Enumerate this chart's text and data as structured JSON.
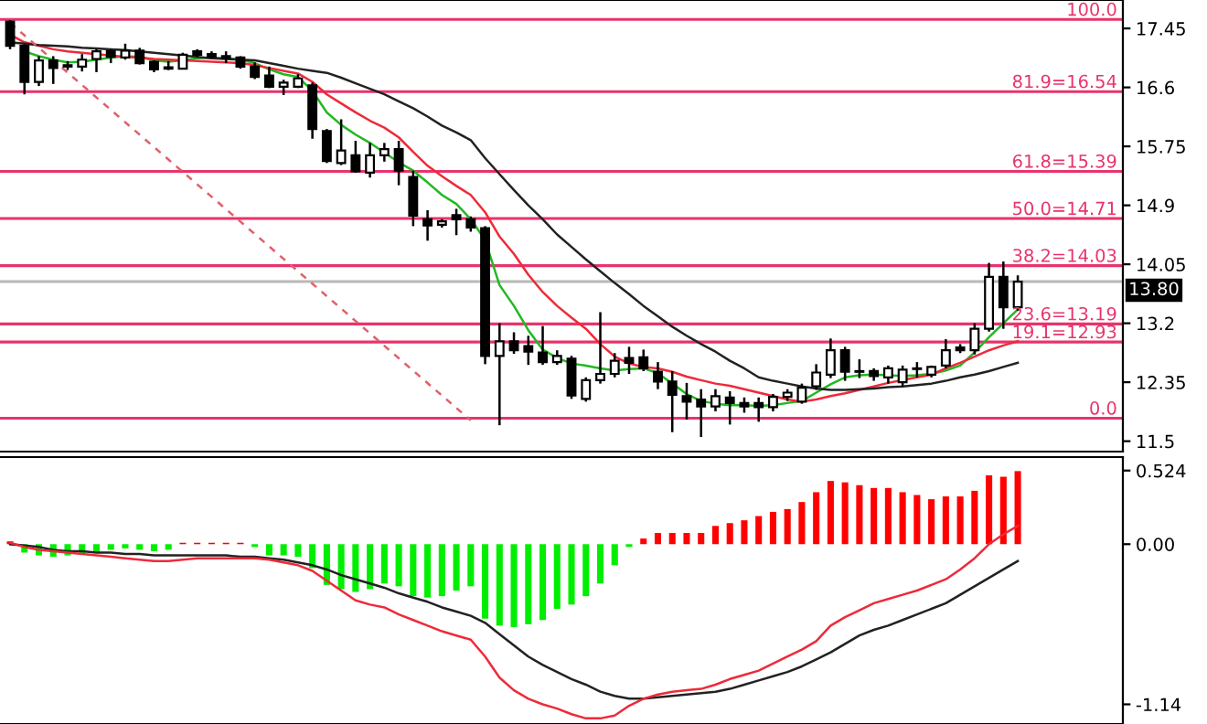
{
  "chart_data": [
    {
      "type": "candlestick",
      "categories": [
        null,
        null,
        null,
        null,
        null,
        null,
        null,
        null,
        null,
        null,
        null,
        null,
        null,
        null,
        null,
        null,
        null,
        null,
        null,
        null,
        null,
        null,
        null,
        null,
        null,
        null,
        null,
        null,
        null,
        null,
        null,
        null,
        null,
        null,
        null,
        null,
        null,
        null,
        null,
        null,
        null,
        null,
        null,
        null,
        null,
        null,
        null,
        null,
        null,
        null,
        null,
        null,
        null,
        null,
        null,
        null,
        null,
        null,
        null,
        null,
        null,
        null,
        null,
        null,
        null,
        null,
        null,
        null,
        null,
        null,
        null
      ],
      "ohlc": [
        [
          17.55,
          17.57,
          17.15,
          17.2
        ],
        [
          17.2,
          17.22,
          16.5,
          16.68
        ],
        [
          16.68,
          17.05,
          16.62,
          16.99
        ],
        [
          16.99,
          17.05,
          16.65,
          16.88
        ],
        [
          16.9,
          16.98,
          16.85,
          16.92
        ],
        [
          16.9,
          17.08,
          16.83,
          17.0
        ],
        [
          17.01,
          17.15,
          16.82,
          17.12
        ],
        [
          17.12,
          17.15,
          16.95,
          17.04
        ],
        [
          17.03,
          17.23,
          17.0,
          17.13
        ],
        [
          17.13,
          17.17,
          16.93,
          16.95
        ],
        [
          16.97,
          16.99,
          16.82,
          16.86
        ],
        [
          16.89,
          16.98,
          16.85,
          16.87
        ],
        [
          16.87,
          17.1,
          16.87,
          17.07
        ],
        [
          17.12,
          17.15,
          17.04,
          17.07
        ],
        [
          17.08,
          17.12,
          17.02,
          17.04
        ],
        [
          17.05,
          17.12,
          16.95,
          17.02
        ],
        [
          17.03,
          17.05,
          16.87,
          16.9
        ],
        [
          16.9,
          16.96,
          16.72,
          16.75
        ],
        [
          16.77,
          16.9,
          16.59,
          16.61
        ],
        [
          16.61,
          16.71,
          16.49,
          16.67
        ],
        [
          16.61,
          16.79,
          16.59,
          16.73
        ],
        [
          16.63,
          16.67,
          15.86,
          16.0
        ],
        [
          15.97,
          16.0,
          15.51,
          15.54
        ],
        [
          15.51,
          16.14,
          15.48,
          15.69
        ],
        [
          15.62,
          15.83,
          15.37,
          15.39
        ],
        [
          15.37,
          15.8,
          15.3,
          15.62
        ],
        [
          15.62,
          15.8,
          15.53,
          15.71
        ],
        [
          15.71,
          15.83,
          15.19,
          15.4
        ],
        [
          15.31,
          15.4,
          14.6,
          14.75
        ],
        [
          14.7,
          14.83,
          14.39,
          14.61
        ],
        [
          14.62,
          14.7,
          14.58,
          14.67
        ],
        [
          14.76,
          14.85,
          14.47,
          14.7
        ],
        [
          14.7,
          14.74,
          14.52,
          14.58
        ],
        [
          14.57,
          14.6,
          12.61,
          12.73
        ],
        [
          12.73,
          13.2,
          11.73,
          12.94
        ],
        [
          12.94,
          13.07,
          12.76,
          12.81
        ],
        [
          12.87,
          13.02,
          12.6,
          12.79
        ],
        [
          12.78,
          13.16,
          12.6,
          12.64
        ],
        [
          12.64,
          12.81,
          12.6,
          12.73
        ],
        [
          12.69,
          12.73,
          12.11,
          12.16
        ],
        [
          12.11,
          12.42,
          12.07,
          12.38
        ],
        [
          12.38,
          13.36,
          12.33,
          12.47
        ],
        [
          12.47,
          12.77,
          12.42,
          12.66
        ],
        [
          12.7,
          12.86,
          12.47,
          12.63
        ],
        [
          12.71,
          12.82,
          12.51,
          12.55
        ],
        [
          12.5,
          12.64,
          12.25,
          12.36
        ],
        [
          12.36,
          12.51,
          11.63,
          12.17
        ],
        [
          12.15,
          12.34,
          11.81,
          12.07
        ],
        [
          12.1,
          12.25,
          11.56,
          12.0
        ],
        [
          12.0,
          12.25,
          11.93,
          12.15
        ],
        [
          12.13,
          12.22,
          11.74,
          12.05
        ],
        [
          12.05,
          12.13,
          11.91,
          12.0
        ],
        [
          12.05,
          12.13,
          11.78,
          11.99
        ],
        [
          11.99,
          12.18,
          11.93,
          12.14
        ],
        [
          12.14,
          12.25,
          12.08,
          12.2
        ],
        [
          12.07,
          12.33,
          12.04,
          12.27
        ],
        [
          12.29,
          12.61,
          12.24,
          12.49
        ],
        [
          12.46,
          12.98,
          12.41,
          12.81
        ],
        [
          12.81,
          12.86,
          12.37,
          12.5
        ],
        [
          12.51,
          12.68,
          12.41,
          12.5
        ],
        [
          12.51,
          12.55,
          12.37,
          12.44
        ],
        [
          12.42,
          12.59,
          12.33,
          12.55
        ],
        [
          12.35,
          12.59,
          12.29,
          12.53
        ],
        [
          12.54,
          12.64,
          12.42,
          12.55
        ],
        [
          12.46,
          12.59,
          12.42,
          12.57
        ],
        [
          12.59,
          12.97,
          12.55,
          12.81
        ],
        [
          12.85,
          12.9,
          12.77,
          12.81
        ],
        [
          12.81,
          13.2,
          12.75,
          13.12
        ],
        [
          13.12,
          14.07,
          13.08,
          13.87
        ],
        [
          13.87,
          14.09,
          13.12,
          13.43
        ],
        [
          13.43,
          13.89,
          13.38,
          13.8
        ]
      ],
      "series": [
        {
          "type": "line",
          "color": "#22b822",
          "values": [
            null,
            17.12,
            17.05,
            17.0,
            16.96,
            16.97,
            17.0,
            17.03,
            17.05,
            17.04,
            16.99,
            16.97,
            16.99,
            17.02,
            17.03,
            17.02,
            17.0,
            16.95,
            16.86,
            16.79,
            16.75,
            16.55,
            16.24,
            16.06,
            15.92,
            15.8,
            15.66,
            15.52,
            15.4,
            15.23,
            15.05,
            14.92,
            14.7,
            14.4,
            13.75,
            13.45,
            13.1,
            12.82,
            12.7,
            12.62,
            12.59,
            12.55,
            12.52,
            12.54,
            12.55,
            12.48,
            12.33,
            12.18,
            12.08,
            12.04,
            12.02,
            12.02,
            12.01,
            12.02,
            12.05,
            12.08,
            12.2,
            12.32,
            12.42,
            12.45,
            12.46,
            12.45,
            12.44,
            12.45,
            12.47,
            12.52,
            12.59,
            12.78,
            13.0,
            13.2,
            13.4
          ]
        },
        {
          "type": "line",
          "color": "#ee2a3a",
          "values": [
            17.36,
            17.25,
            17.2,
            17.15,
            17.12,
            17.1,
            17.08,
            17.06,
            17.04,
            17.03,
            17.01,
            17.0,
            16.99,
            16.98,
            16.97,
            16.96,
            16.95,
            16.92,
            16.88,
            16.84,
            16.8,
            16.68,
            16.5,
            16.37,
            16.24,
            16.12,
            16.02,
            15.88,
            15.67,
            15.47,
            15.32,
            15.18,
            15.05,
            14.8,
            14.45,
            14.2,
            13.9,
            13.65,
            13.45,
            13.28,
            13.12,
            12.9,
            12.72,
            12.62,
            12.57,
            12.55,
            12.5,
            12.43,
            12.38,
            12.33,
            12.3,
            12.25,
            12.2,
            12.15,
            12.1,
            12.07,
            12.1,
            12.15,
            12.19,
            12.24,
            12.29,
            12.34,
            12.38,
            12.42,
            12.46,
            12.55,
            12.63,
            12.72,
            12.81,
            12.88,
            12.94
          ]
        },
        {
          "type": "line",
          "color": "#222222",
          "values": [
            17.25,
            17.23,
            17.21,
            17.2,
            17.19,
            17.17,
            17.16,
            17.15,
            17.14,
            17.12,
            17.1,
            17.08,
            17.06,
            17.04,
            17.02,
            17.01,
            17.0,
            16.99,
            16.95,
            16.91,
            16.87,
            16.84,
            16.81,
            16.74,
            16.66,
            16.58,
            16.5,
            16.4,
            16.3,
            16.18,
            16.05,
            15.95,
            15.84,
            15.58,
            15.35,
            15.12,
            14.9,
            14.7,
            14.48,
            14.3,
            14.12,
            13.95,
            13.78,
            13.62,
            13.45,
            13.3,
            13.15,
            13.02,
            12.9,
            12.79,
            12.66,
            12.55,
            12.42,
            12.37,
            12.33,
            12.29,
            12.26,
            12.24,
            12.24,
            12.25,
            12.26,
            12.28,
            12.29,
            12.31,
            12.33,
            12.37,
            12.42,
            12.46,
            12.51,
            12.57,
            12.63
          ]
        },
        {
          "type": "line",
          "color": "#e0606a",
          "line_style": "dashed",
          "values": [
            17.53,
            null,
            null,
            null,
            null,
            null,
            null,
            null,
            null,
            null,
            null,
            null,
            null,
            null,
            null,
            null,
            null,
            null,
            null,
            null,
            null,
            null,
            null,
            null,
            null,
            null,
            null,
            null,
            null,
            null,
            null,
            null,
            11.8,
            null,
            null,
            null,
            null,
            null,
            null,
            null,
            null,
            null,
            null,
            null,
            null,
            null,
            null,
            null,
            null,
            null,
            null,
            null,
            null,
            null,
            null,
            null,
            null,
            null,
            null,
            null,
            null,
            null,
            null,
            null,
            null,
            null,
            null,
            null,
            null,
            null,
            null
          ]
        }
      ],
      "ref_lines": [
        {
          "axis": "y",
          "value": 17.58,
          "color": "#e8336b"
        },
        {
          "axis": "y",
          "value": 16.54,
          "label": "81.9=16.54",
          "color": "#e8336b"
        },
        {
          "axis": "y",
          "value": 15.39,
          "label": "61.8=15.39",
          "color": "#e8336b"
        },
        {
          "axis": "y",
          "value": 14.71,
          "label": "50.0=14.71",
          "color": "#e8336b"
        },
        {
          "axis": "y",
          "value": 14.03,
          "label": "38.2=14.03",
          "color": "#e8336b"
        },
        {
          "axis": "y",
          "value": 13.8,
          "label": "13.80",
          "color": "#b8b8b8"
        },
        {
          "axis": "y",
          "value": 13.19,
          "label": "23.6=13.19",
          "color": "#e8336b"
        },
        {
          "axis": "y",
          "value": 12.93,
          "label": "19.1=12.93",
          "color": "#e8336b"
        },
        {
          "axis": "y",
          "value": 11.83,
          "color": "#e8336b"
        }
      ],
      "annotations": [
        "100.0",
        "0.0"
      ],
      "ylim": [
        11.35,
        17.86
      ],
      "yticks": [
        17.45,
        16.6,
        15.75,
        14.9,
        14.05,
        13.2,
        12.35,
        11.5
      ],
      "tick_labels": "y"
    },
    {
      "type": "bar",
      "categories": [
        null,
        null,
        null,
        null,
        null,
        null,
        null,
        null,
        null,
        null,
        null,
        null,
        null,
        null,
        null,
        null,
        null,
        null,
        null,
        null,
        null,
        null,
        null,
        null,
        null,
        null,
        null,
        null,
        null,
        null,
        null,
        null,
        null,
        null,
        null,
        null,
        null,
        null,
        null,
        null,
        null,
        null,
        null,
        null,
        null,
        null,
        null,
        null,
        null,
        null,
        null,
        null,
        null,
        null,
        null,
        null,
        null,
        null,
        null,
        null,
        null,
        null,
        null,
        null,
        null,
        null,
        null,
        null,
        null,
        null,
        null
      ],
      "series": [
        {
          "type": "bar",
          "values": [
            0.02,
            -0.06,
            -0.08,
            -0.09,
            -0.08,
            -0.07,
            -0.06,
            -0.04,
            -0.03,
            -0.04,
            -0.05,
            -0.04,
            0.01,
            0.01,
            0.01,
            0.01,
            0.01,
            -0.02,
            -0.08,
            -0.08,
            -0.09,
            -0.17,
            -0.29,
            -0.32,
            -0.34,
            -0.32,
            -0.28,
            -0.3,
            -0.37,
            -0.38,
            -0.37,
            -0.33,
            -0.3,
            -0.53,
            -0.58,
            -0.59,
            -0.57,
            -0.54,
            -0.46,
            -0.43,
            -0.37,
            -0.28,
            -0.15,
            -0.02,
            0.04,
            0.08,
            0.08,
            0.08,
            0.08,
            0.13,
            0.15,
            0.17,
            0.2,
            0.23,
            0.25,
            0.3,
            0.37,
            0.45,
            0.44,
            0.42,
            0.4,
            0.4,
            0.37,
            0.35,
            0.32,
            0.34,
            0.34,
            0.38,
            0.49,
            0.48,
            0.52
          ],
          "colors": [
            "#ff0000",
            "#00ee00",
            "#00ee00",
            "#00ee00",
            "#00ee00",
            "#00ee00",
            "#00ee00",
            "#00ee00",
            "#00ee00",
            "#00ee00",
            "#00ee00",
            "#00ee00",
            "#ff0000",
            "#ff0000",
            "#ff0000",
            "#ff0000",
            "#ff0000",
            "#00ee00",
            "#00ee00",
            "#00ee00",
            "#00ee00",
            "#00ee00",
            "#00ee00",
            "#00ee00",
            "#00ee00",
            "#00ee00",
            "#00ee00",
            "#00ee00",
            "#00ee00",
            "#00ee00",
            "#00ee00",
            "#00ee00",
            "#00ee00",
            "#00ee00",
            "#00ee00",
            "#00ee00",
            "#00ee00",
            "#00ee00",
            "#00ee00",
            "#00ee00",
            "#00ee00",
            "#00ee00",
            "#00ee00",
            "#00ee00",
            "#ff0000",
            "#ff0000",
            "#ff0000",
            "#ff0000",
            "#ff0000",
            "#ff0000",
            "#ff0000",
            "#ff0000",
            "#ff0000",
            "#ff0000",
            "#ff0000",
            "#ff0000",
            "#ff0000",
            "#ff0000",
            "#ff0000",
            "#ff0000",
            "#ff0000",
            "#ff0000",
            "#ff0000",
            "#ff0000",
            "#ff0000",
            "#ff0000",
            "#ff0000",
            "#ff0000",
            "#ff0000",
            "#ff0000",
            "#ff0000"
          ]
        },
        {
          "type": "line",
          "color": "#222222",
          "values": [
            0.0,
            -0.01,
            -0.02,
            -0.04,
            -0.05,
            -0.05,
            -0.06,
            -0.06,
            -0.07,
            -0.07,
            -0.08,
            -0.08,
            -0.08,
            -0.08,
            -0.08,
            -0.08,
            -0.09,
            -0.09,
            -0.1,
            -0.11,
            -0.13,
            -0.15,
            -0.18,
            -0.22,
            -0.25,
            -0.28,
            -0.31,
            -0.35,
            -0.38,
            -0.41,
            -0.45,
            -0.48,
            -0.51,
            -0.56,
            -0.64,
            -0.72,
            -0.8,
            -0.86,
            -0.91,
            -0.96,
            -1.0,
            -1.05,
            -1.08,
            -1.1,
            -1.1,
            -1.09,
            -1.08,
            -1.07,
            -1.06,
            -1.05,
            -1.03,
            -1.0,
            -0.97,
            -0.94,
            -0.91,
            -0.87,
            -0.82,
            -0.77,
            -0.71,
            -0.65,
            -0.61,
            -0.58,
            -0.54,
            -0.5,
            -0.46,
            -0.42,
            -0.36,
            -0.3,
            -0.24,
            -0.18,
            -0.12
          ]
        },
        {
          "type": "line",
          "color": "#ee2a3a",
          "values": [
            0.01,
            -0.02,
            -0.04,
            -0.05,
            -0.06,
            -0.07,
            -0.08,
            -0.09,
            -0.1,
            -0.11,
            -0.12,
            -0.12,
            -0.11,
            -0.1,
            -0.1,
            -0.1,
            -0.1,
            -0.1,
            -0.11,
            -0.13,
            -0.15,
            -0.19,
            -0.26,
            -0.33,
            -0.4,
            -0.43,
            -0.45,
            -0.5,
            -0.54,
            -0.58,
            -0.62,
            -0.65,
            -0.68,
            -0.8,
            -0.95,
            -1.04,
            -1.1,
            -1.14,
            -1.17,
            -1.21,
            -1.24,
            -1.24,
            -1.22,
            -1.15,
            -1.1,
            -1.07,
            -1.05,
            -1.04,
            -1.03,
            -1.0,
            -0.96,
            -0.93,
            -0.9,
            -0.85,
            -0.8,
            -0.75,
            -0.69,
            -0.58,
            -0.52,
            -0.47,
            -0.42,
            -0.39,
            -0.36,
            -0.33,
            -0.29,
            -0.25,
            -0.18,
            -0.1,
            0.0,
            0.07,
            0.13
          ]
        }
      ],
      "ylim": [
        -1.28,
        0.62
      ],
      "yticks": [
        0.524,
        {
          "value": 0.0,
          "label": "0.00"
        },
        {
          "value": -1.14,
          "label": "-1.14"
        }
      ],
      "tick_labels": "y"
    }
  ]
}
